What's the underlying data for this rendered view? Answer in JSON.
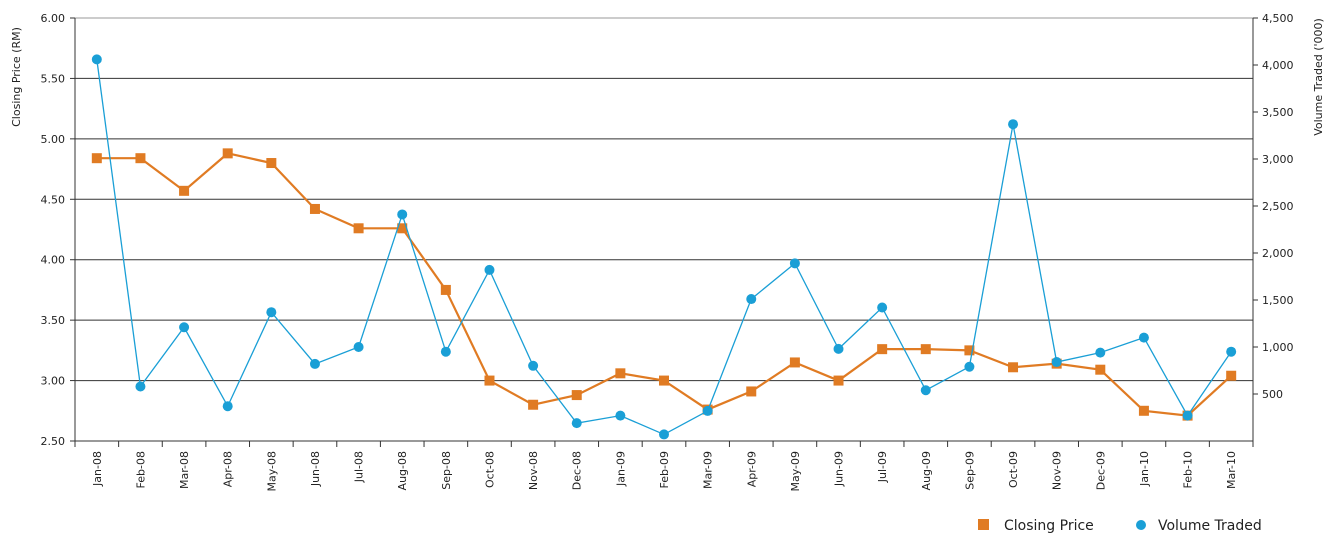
{
  "chart_data": {
    "type": "line",
    "categories": [
      "Jan-08",
      "Feb-08",
      "Mar-08",
      "Apr-08",
      "May-08",
      "Jun-08",
      "Jul-08",
      "Aug-08",
      "Sep-08",
      "Oct-08",
      "Nov-08",
      "Dec-08",
      "Jan-09",
      "Feb-09",
      "Mar-09",
      "Apr-09",
      "May-09",
      "Jun-09",
      "Jul-09",
      "Aug-09",
      "Sep-09",
      "Oct-09",
      "Nov-09",
      "Dec-09",
      "Jan-10",
      "Feb-10",
      "Mar-10"
    ],
    "series": [
      {
        "name": "Closing Price",
        "axis": "left",
        "marker": "square",
        "color": "#e07b23",
        "values": [
          4.84,
          4.84,
          4.57,
          4.88,
          4.8,
          4.42,
          4.26,
          4.26,
          3.75,
          3.0,
          2.8,
          2.88,
          3.06,
          3.0,
          2.76,
          2.91,
          3.15,
          3.0,
          3.26,
          3.26,
          3.25,
          3.11,
          3.14,
          3.09,
          2.75,
          2.71,
          3.04
        ]
      },
      {
        "name": "Volume Traded",
        "axis": "right",
        "marker": "circle",
        "color": "#1a9fd6",
        "values": [
          4060,
          580,
          1210,
          370,
          1370,
          820,
          1000,
          2410,
          950,
          1820,
          800,
          190,
          270,
          70,
          320,
          1510,
          1890,
          980,
          1420,
          540,
          790,
          3370,
          840,
          940,
          1100,
          270,
          950
        ]
      }
    ],
    "ylabel_left": "Closing Price (RM)",
    "ylabel_right": "Volume Traded ('000)",
    "ylim_left": [
      2.5,
      6.0
    ],
    "ylim_right": [
      0,
      4500
    ],
    "yticks_left": [
      "2.50",
      "3.00",
      "3.50",
      "4.00",
      "4.50",
      "5.00",
      "5.50",
      "6.00"
    ],
    "yticks_right": [
      "500",
      "1,000",
      "1,500",
      "2,000",
      "2,500",
      "3,000",
      "3,500",
      "4,000",
      "4,500"
    ],
    "grid": true,
    "legend_position": "bottom-right"
  }
}
